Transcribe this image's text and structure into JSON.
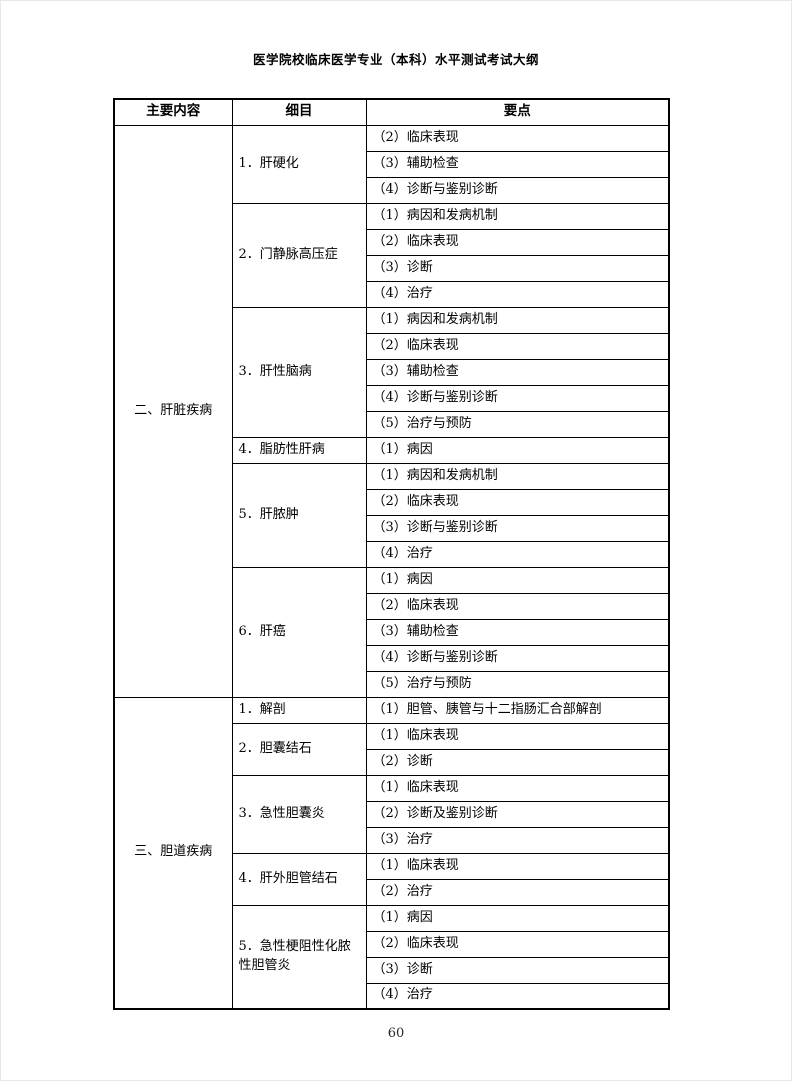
{
  "page": {
    "header_title": "医学院校临床医学专业（本科）水平测试考试大纲",
    "page_number": "60"
  },
  "table": {
    "columns": [
      "主要内容",
      "细目",
      "要点"
    ],
    "groups": [
      {
        "label": "二、肝脏疾病",
        "details": [
          {
            "label": "1．肝硬化",
            "points": [
              "（2）临床表现",
              "（3）辅助检查",
              "（4）诊断与鉴别诊断"
            ]
          },
          {
            "label": "2．门静脉高压症",
            "points": [
              "（1）病因和发病机制",
              "（2）临床表现",
              "（3）诊断",
              "（4）治疗"
            ]
          },
          {
            "label": "3．肝性脑病",
            "points": [
              "（1）病因和发病机制",
              "（2）临床表现",
              "（3）辅助检查",
              "（4）诊断与鉴别诊断",
              "（5）治疗与预防"
            ]
          },
          {
            "label": "4．脂肪性肝病",
            "points": [
              "（1）病因"
            ]
          },
          {
            "label": "5．肝脓肿",
            "points": [
              "（1）病因和发病机制",
              "（2）临床表现",
              "（3）诊断与鉴别诊断",
              "（4）治疗"
            ]
          },
          {
            "label": "6．肝癌",
            "points": [
              "（1）病因",
              "（2）临床表现",
              "（3）辅助检查",
              "（4）诊断与鉴别诊断",
              "（5）治疗与预防"
            ]
          }
        ]
      },
      {
        "label": "三、胆道疾病",
        "details": [
          {
            "label": "1．解剖",
            "points": [
              "（1）胆管、胰管与十二指肠汇合部解剖"
            ]
          },
          {
            "label": "2．胆囊结石",
            "points": [
              "（1）临床表现",
              "（2）诊断"
            ]
          },
          {
            "label": "3．急性胆囊炎",
            "points": [
              "（1）临床表现",
              "（2）诊断及鉴别诊断",
              "（3）治疗"
            ]
          },
          {
            "label": "4．肝外胆管结石",
            "points": [
              "（1）临床表现",
              "（2）治疗"
            ]
          },
          {
            "label": "5．急性梗阻性化脓性胆管炎",
            "points": [
              "（1）病因",
              "（2）临床表现",
              "（3）诊断",
              "（4）治疗"
            ]
          }
        ]
      }
    ]
  }
}
